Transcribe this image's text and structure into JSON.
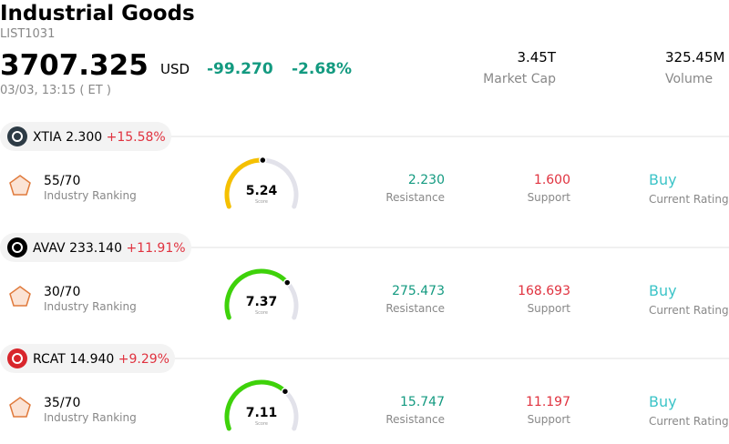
{
  "header": {
    "title": "Industrial Goods",
    "code": "LIST1031",
    "price": "3707.325",
    "currency": "USD",
    "change": "-99.270",
    "change_percent": "-2.68%",
    "datetime": "03/03, 13:15  ( ET )",
    "market_cap": "3.45T",
    "market_cap_label": "Market Cap",
    "volume": "325.45M",
    "volume_label": "Volume"
  },
  "stocks": [
    {
      "ticker": "XTIA",
      "price": "2.300",
      "change": "+15.58%",
      "ranking": "55/70",
      "ranking_label": "Industry Ranking",
      "score": "5.24",
      "score_label": "Score",
      "resistance": "2.230",
      "resistance_label": "Resistance",
      "support": "1.600",
      "support_label": "Support",
      "rating": "Buy",
      "rating_label": "Current Rating"
    },
    {
      "ticker": "AVAV",
      "price": "233.140",
      "change": "+11.91%",
      "ranking": "30/70",
      "ranking_label": "Industry Ranking",
      "score": "7.37",
      "score_label": "Score",
      "resistance": "275.473",
      "resistance_label": "Resistance",
      "support": "168.693",
      "support_label": "Support",
      "rating": "Buy",
      "rating_label": "Current Rating"
    },
    {
      "ticker": "RCAT",
      "price": "14.940",
      "change": "+9.29%",
      "ranking": "35/70",
      "ranking_label": "Industry Ranking",
      "score": "7.11",
      "score_label": "Score",
      "resistance": "15.747",
      "resistance_label": "Resistance",
      "support": "11.197",
      "support_label": "Support",
      "rating": "Buy",
      "rating_label": "Current Rating"
    }
  ]
}
